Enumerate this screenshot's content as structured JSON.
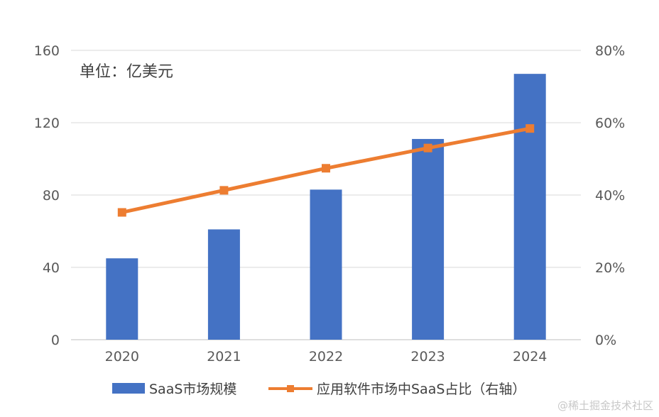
{
  "chart_data": {
    "type": "bar",
    "categories": [
      "2020",
      "2021",
      "2022",
      "2023",
      "2024"
    ],
    "series": [
      {
        "name": "SaaS市场规模",
        "kind": "bar",
        "axis": "left",
        "color": "#4472C4",
        "values": [
          45,
          61,
          83,
          111,
          147
        ]
      },
      {
        "name": "应用软件市场中SaaS占比（右轴）",
        "kind": "line",
        "axis": "right",
        "color": "#ED7D31",
        "values": [
          0.352,
          0.413,
          0.474,
          0.53,
          0.584
        ]
      }
    ],
    "unit_label": "单位：亿美元",
    "ylim_left": [
      0,
      160
    ],
    "yticks_left": [
      "0",
      "40",
      "80",
      "120",
      "160"
    ],
    "ylim_right": [
      0,
      0.8
    ],
    "yticks_right": [
      "0%",
      "20%",
      "40%",
      "60%",
      "80%"
    ],
    "grid": true,
    "legend_position": "bottom"
  },
  "watermark": "@稀土掘金技术社区"
}
